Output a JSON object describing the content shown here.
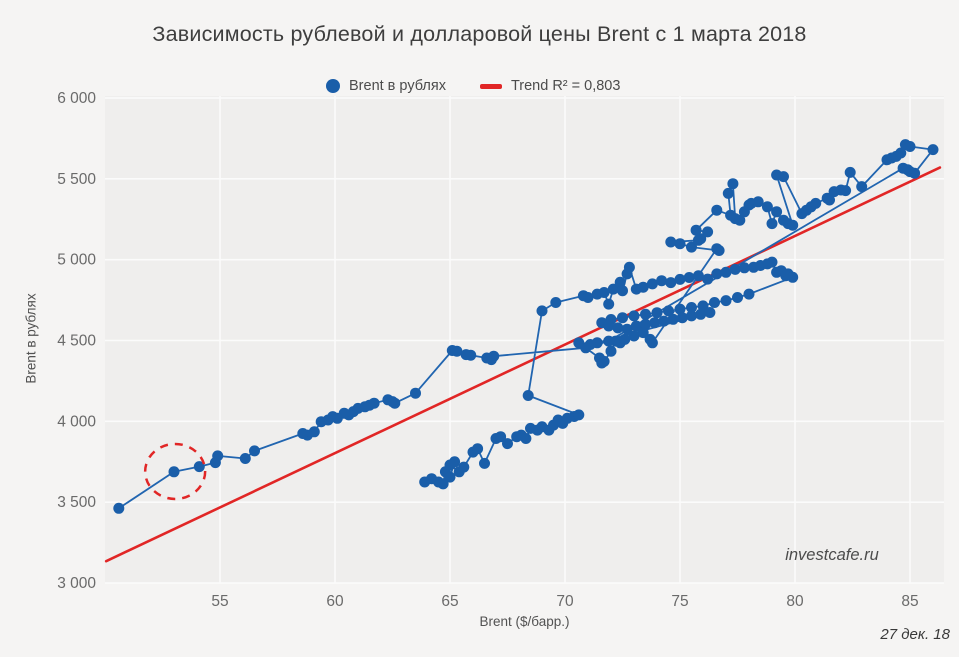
{
  "title": "Зависимость рублевой и долларовой цены Brent с 1 марта 2018",
  "legend": {
    "series_label": "Brent в рублях",
    "trend_label": "Trend R² = 0,803"
  },
  "watermark": "investcafe.ru",
  "date_note": "27 дек. 18",
  "colors": {
    "point": "#1a5ea9",
    "line": "#2165b0",
    "trend": "#e12626",
    "annotation": "#e12626",
    "plot_bg": "#efeeed",
    "page_bg": "#f5f4f3",
    "grid": "#fbfbfb",
    "tick_text": "#6a6a6a"
  },
  "chart_data": {
    "type": "scatter",
    "title": "Зависимость рублевой и долларовой цены Brent с 1 марта 2018",
    "xlabel": "Brent ($/барр.)",
    "ylabel": "Brent в рублях",
    "xlim": [
      50,
      86.5
    ],
    "ylim": [
      3000,
      6000
    ],
    "grid": true,
    "legend_position": "top",
    "x_ticks": [
      55,
      60,
      65,
      70,
      75,
      80,
      85
    ],
    "y_ticks": [
      3000,
      3500,
      4000,
      4500,
      5000,
      5500,
      6000
    ],
    "y_tick_labels": [
      "3 000",
      "3 500",
      "4 000",
      "4 500",
      "5 000",
      "5 500",
      "6 000"
    ],
    "series": [
      {
        "name": "Brent в рублях",
        "marker": "circle",
        "connected": true,
        "points": [
          [
            63.9,
            3625
          ],
          [
            64.2,
            3645
          ],
          [
            64.5,
            3625
          ],
          [
            64.7,
            3613
          ],
          [
            64.8,
            3688
          ],
          [
            65.0,
            3655
          ],
          [
            65.2,
            3750
          ],
          [
            65.0,
            3730
          ],
          [
            65.4,
            3688
          ],
          [
            65.6,
            3717
          ],
          [
            66.0,
            3810
          ],
          [
            66.2,
            3831
          ],
          [
            66.5,
            3740
          ],
          [
            67.0,
            3894
          ],
          [
            67.2,
            3905
          ],
          [
            67.5,
            3862
          ],
          [
            67.9,
            3905
          ],
          [
            68.1,
            3915
          ],
          [
            68.3,
            3894
          ],
          [
            68.5,
            3956
          ],
          [
            68.8,
            3946
          ],
          [
            69.0,
            3966
          ],
          [
            69.3,
            3946
          ],
          [
            69.5,
            3977
          ],
          [
            69.7,
            4008
          ],
          [
            69.9,
            3987
          ],
          [
            70.1,
            4019
          ],
          [
            70.4,
            4030
          ],
          [
            70.6,
            4040
          ],
          [
            68.4,
            4160
          ],
          [
            69.0,
            4683
          ],
          [
            69.6,
            4735
          ],
          [
            70.8,
            4777
          ],
          [
            71.0,
            4766
          ],
          [
            71.4,
            4787
          ],
          [
            71.7,
            4797
          ],
          [
            71.9,
            4725
          ],
          [
            72.1,
            4818
          ],
          [
            72.4,
            4860
          ],
          [
            72.5,
            4808
          ],
          [
            72.7,
            4912
          ],
          [
            72.8,
            4953
          ],
          [
            73.1,
            4818
          ],
          [
            73.4,
            4830
          ],
          [
            73.8,
            4850
          ],
          [
            74.2,
            4870
          ],
          [
            74.6,
            4858
          ],
          [
            75.0,
            4878
          ],
          [
            75.4,
            4890
          ],
          [
            75.8,
            4900
          ],
          [
            76.2,
            4880
          ],
          [
            76.6,
            4912
          ],
          [
            77.0,
            4922
          ],
          [
            77.4,
            4940
          ],
          [
            77.8,
            4950
          ],
          [
            78.2,
            4953
          ],
          [
            78.5,
            4964
          ],
          [
            78.8,
            4974
          ],
          [
            79.0,
            4985
          ],
          [
            79.2,
            4922
          ],
          [
            79.4,
            4932
          ],
          [
            79.6,
            4901
          ],
          [
            79.7,
            4912
          ],
          [
            79.9,
            4891
          ],
          [
            78.0,
            4787
          ],
          [
            77.5,
            4766
          ],
          [
            77.0,
            4747
          ],
          [
            76.5,
            4735
          ],
          [
            76.0,
            4714
          ],
          [
            75.5,
            4704
          ],
          [
            75.0,
            4694
          ],
          [
            74.5,
            4683
          ],
          [
            74.0,
            4672
          ],
          [
            73.5,
            4662
          ],
          [
            73.0,
            4652
          ],
          [
            72.5,
            4641
          ],
          [
            72.0,
            4630
          ],
          [
            71.6,
            4610
          ],
          [
            71.9,
            4590
          ],
          [
            72.3,
            4578
          ],
          [
            72.7,
            4570
          ],
          [
            73.1,
            4590
          ],
          [
            73.5,
            4600
          ],
          [
            73.9,
            4610
          ],
          [
            74.3,
            4620
          ],
          [
            74.7,
            4631
          ],
          [
            75.1,
            4641
          ],
          [
            75.5,
            4652
          ],
          [
            75.9,
            4662
          ],
          [
            76.3,
            4673
          ],
          [
            71.4,
            4486
          ],
          [
            71.1,
            4475
          ],
          [
            70.6,
            4486
          ],
          [
            71.5,
            4392
          ],
          [
            71.6,
            4361
          ],
          [
            71.7,
            4371
          ],
          [
            72.0,
            4434
          ],
          [
            72.2,
            4496
          ],
          [
            72.4,
            4486
          ],
          [
            72.6,
            4507
          ],
          [
            73.0,
            4528
          ],
          [
            73.4,
            4549
          ],
          [
            73.7,
            4507
          ],
          [
            73.8,
            4486
          ],
          [
            76.6,
            5068
          ],
          [
            76.7,
            5057
          ],
          [
            75.5,
            5078
          ],
          [
            75.0,
            5099
          ],
          [
            74.6,
            5109
          ],
          [
            75.8,
            5120
          ],
          [
            75.9,
            5130
          ],
          [
            76.2,
            5172
          ],
          [
            75.7,
            5182
          ],
          [
            76.6,
            5306
          ],
          [
            77.2,
            5275
          ],
          [
            77.1,
            5410
          ],
          [
            77.3,
            5470
          ],
          [
            77.4,
            5254
          ],
          [
            77.6,
            5244
          ],
          [
            77.8,
            5296
          ],
          [
            78.0,
            5338
          ],
          [
            78.1,
            5348
          ],
          [
            78.4,
            5358
          ],
          [
            78.8,
            5327
          ],
          [
            79.0,
            5223
          ],
          [
            79.2,
            5296
          ],
          [
            79.5,
            5244
          ],
          [
            79.7,
            5223
          ],
          [
            79.9,
            5213
          ],
          [
            79.2,
            5524
          ],
          [
            79.5,
            5514
          ],
          [
            80.3,
            5285
          ],
          [
            80.5,
            5306
          ],
          [
            80.7,
            5327
          ],
          [
            80.9,
            5348
          ],
          [
            81.4,
            5380
          ],
          [
            81.5,
            5369
          ],
          [
            81.7,
            5421
          ],
          [
            82.0,
            5431
          ],
          [
            82.2,
            5427
          ],
          [
            82.4,
            5540
          ],
          [
            82.9,
            5452
          ],
          [
            84.0,
            5618
          ],
          [
            84.2,
            5629
          ],
          [
            84.4,
            5639
          ],
          [
            84.6,
            5660
          ],
          [
            84.8,
            5712
          ],
          [
            85.0,
            5700
          ],
          [
            86.0,
            5681
          ],
          [
            85.2,
            5535
          ],
          [
            85.0,
            5545
          ],
          [
            84.9,
            5556
          ],
          [
            84.7,
            5566
          ],
          [
            71.9,
            4496
          ],
          [
            70.9,
            4455
          ],
          [
            66.9,
            4403
          ],
          [
            66.8,
            4382
          ],
          [
            66.6,
            4392
          ],
          [
            65.9,
            4409
          ],
          [
            65.7,
            4413
          ],
          [
            65.3,
            4434
          ],
          [
            65.1,
            4438
          ],
          [
            63.5,
            4174
          ],
          [
            62.6,
            4112
          ],
          [
            62.5,
            4122
          ],
          [
            62.3,
            4133
          ],
          [
            61.7,
            4112
          ],
          [
            61.5,
            4100
          ],
          [
            61.3,
            4090
          ],
          [
            61.0,
            4080
          ],
          [
            60.8,
            4060
          ],
          [
            60.6,
            4040
          ],
          [
            60.4,
            4050
          ],
          [
            60.1,
            4019
          ],
          [
            59.9,
            4029
          ],
          [
            59.7,
            4008
          ],
          [
            59.4,
            3998
          ],
          [
            59.1,
            3935
          ],
          [
            58.8,
            3915
          ],
          [
            58.6,
            3925
          ],
          [
            56.5,
            3817
          ],
          [
            56.1,
            3770
          ],
          [
            54.9,
            3786
          ],
          [
            54.8,
            3745
          ],
          [
            54.1,
            3720
          ],
          [
            53.0,
            3688
          ],
          [
            50.6,
            3462
          ]
        ]
      }
    ],
    "trend": {
      "name": "Trend R² = 0,803",
      "r2": "0,803",
      "x1": 50.05,
      "y1": 3135,
      "x2": 86.3,
      "y2": 5570
    },
    "annotation_circle": {
      "cx": 53.05,
      "cy": 3690,
      "style": "dashed-red-ellipse"
    }
  }
}
